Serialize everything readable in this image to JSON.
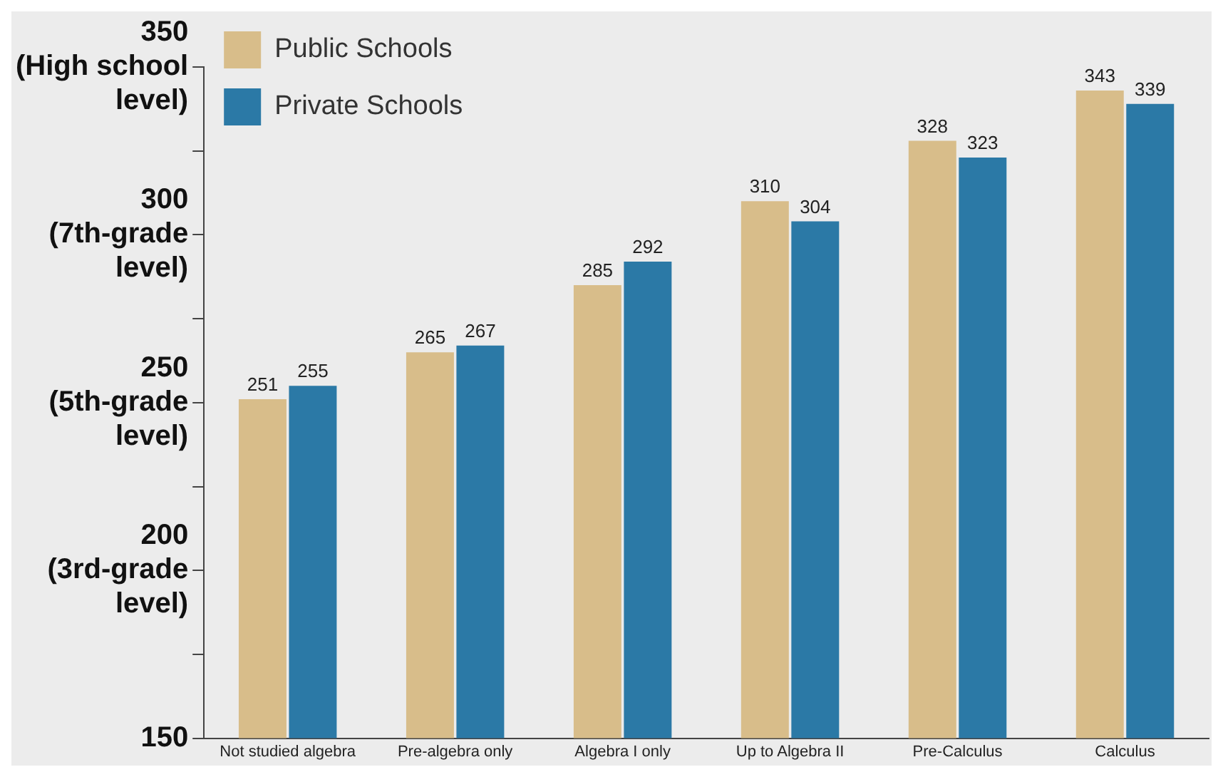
{
  "chart_data": {
    "type": "bar",
    "categories": [
      "Not studied algebra",
      "Pre-algebra only",
      "Algebra I only",
      "Up to Algebra II",
      "Pre-Calculus",
      "Calculus"
    ],
    "series": [
      {
        "name": "Public Schools",
        "color": "#d8bd8a",
        "values": [
          251,
          265,
          285,
          310,
          328,
          343
        ]
      },
      {
        "name": "Private Schools",
        "color": "#2b79a6",
        "values": [
          255,
          267,
          292,
          304,
          323,
          339
        ]
      }
    ],
    "ylim": [
      150,
      350
    ],
    "yticks": [
      {
        "value": 150,
        "label": "150"
      },
      {
        "value": 175,
        "label": null
      },
      {
        "value": 200,
        "label": "200\n(3rd-grade\nlevel)"
      },
      {
        "value": 225,
        "label": null
      },
      {
        "value": 250,
        "label": "250\n(5th-grade\nlevel)"
      },
      {
        "value": 275,
        "label": null
      },
      {
        "value": 300,
        "label": "300\n(7th-grade\nlevel)"
      },
      {
        "value": 325,
        "label": null
      },
      {
        "value": 350,
        "label": "350\n(High school\nlevel)"
      }
    ],
    "data_labels": true,
    "legend": "top left",
    "grid": false
  }
}
